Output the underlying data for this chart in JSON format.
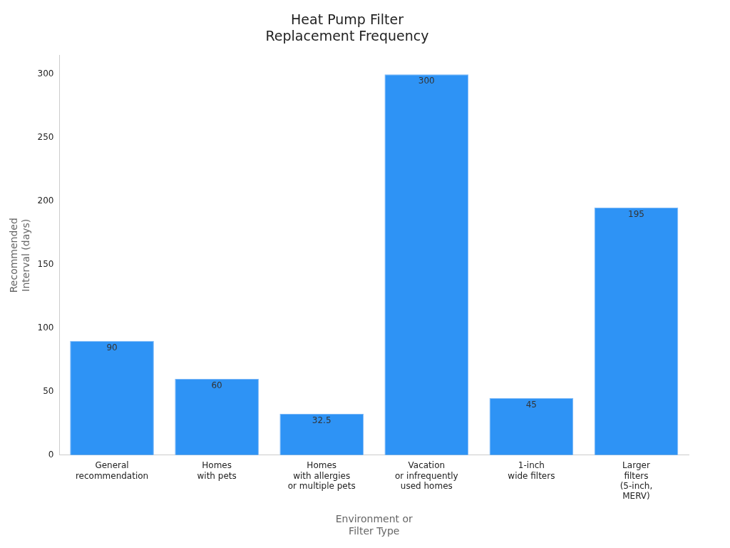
{
  "chart_data": {
    "type": "bar",
    "title": "Heat Pump Filter\nReplacement Frequency",
    "xlabel": "Environment or\nFilter Type",
    "ylabel": "Recommended\nInterval (days)",
    "categories": [
      "General\nrecommendation",
      "Homes\nwith pets",
      "Homes\nwith allergies\nor multiple pets",
      "Vacation\nor infrequently\nused homes",
      "1-inch\nwide filters",
      "Larger\nfilters\n(5-inch,\nMERV)"
    ],
    "values": [
      90,
      60,
      32.5,
      300,
      45,
      195
    ],
    "color": "#2e93f5",
    "ylim": [
      0,
      315
    ],
    "yticks": [
      0,
      50,
      100,
      150,
      200,
      250,
      300
    ],
    "grid": false,
    "legend": false,
    "data_labels": true
  }
}
